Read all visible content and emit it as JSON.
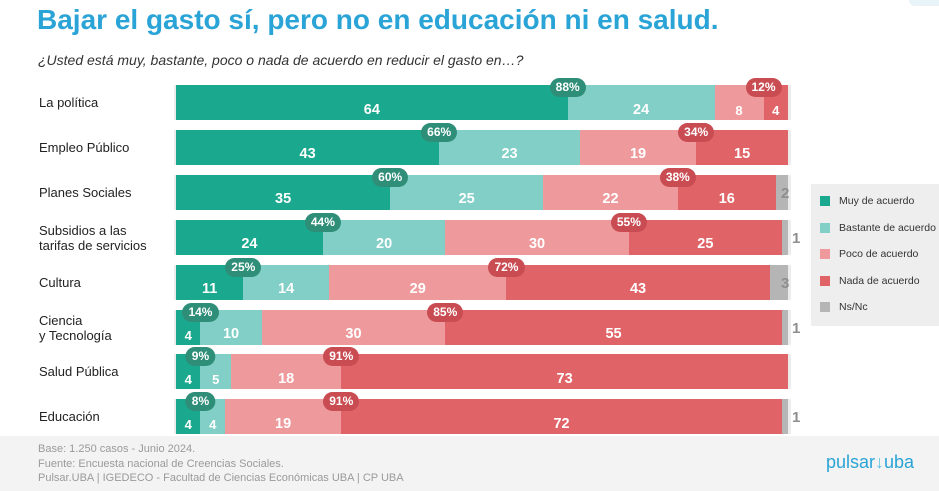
{
  "header": {
    "title": "Bajar el gasto sí, pero no en educación ni en salud.",
    "subtitle": "¿Usted está muy, bastante, poco o nada de acuerdo en reducir el gasto en…?"
  },
  "colors": {
    "muy": "#1aa88e",
    "bastante": "#81cfc6",
    "poco": "#ee9a9c",
    "nada": "#e06367",
    "nsnc": "#b5b5b5",
    "pill_agree": "#2f8e78",
    "pill_disagree": "#c94c52",
    "title": "#2aa4d6"
  },
  "chart_data": {
    "type": "bar",
    "orientation": "horizontal-stacked-100",
    "title": "Bajar el gasto sí, pero no en educación ni en salud.",
    "subtitle": "¿Usted está muy, bastante, poco o nada de acuerdo en reducir el gasto en…?",
    "unit": "%",
    "categories": [
      "La política",
      "Empleo Público",
      "Planes Sociales",
      "Subsidios a las\ntarifas de servicios",
      "Cultura",
      "Ciencia\ny Tecnología",
      "Salud Pública",
      "Educación"
    ],
    "series": [
      {
        "name": "Muy de acuerdo",
        "values": [
          64,
          43,
          35,
          24,
          11,
          4,
          4,
          4
        ]
      },
      {
        "name": "Bastante de acuerdo",
        "values": [
          24,
          23,
          25,
          20,
          14,
          10,
          5,
          4
        ]
      },
      {
        "name": "Poco de acuerdo",
        "values": [
          8,
          19,
          22,
          30,
          29,
          30,
          18,
          19
        ]
      },
      {
        "name": "Nada de acuerdo",
        "values": [
          4,
          15,
          16,
          25,
          43,
          55,
          73,
          72
        ]
      },
      {
        "name": "Ns/Nc",
        "values": [
          0,
          0,
          2,
          1,
          3,
          1,
          0,
          1
        ]
      }
    ],
    "agree_totals": [
      "88%",
      "66%",
      "60%",
      "44%",
      "25%",
      "14%",
      "9%",
      "8%"
    ],
    "disagree_totals": [
      "12%",
      "34%",
      "38%",
      "55%",
      "72%",
      "85%",
      "91%",
      "91%"
    ],
    "legend_position": "right"
  },
  "footer": {
    "line1": "Base: 1.250 casos - Junio 2024.",
    "line2": "Fuente: Encuesta nacional de Creencias Sociales.",
    "line3": "Pulsar.UBA | IGEDECO - Facultad de Ciencias Económicas UBA | CP UBA"
  },
  "brand": {
    "part1": "pulsar",
    "part2": "uba"
  }
}
